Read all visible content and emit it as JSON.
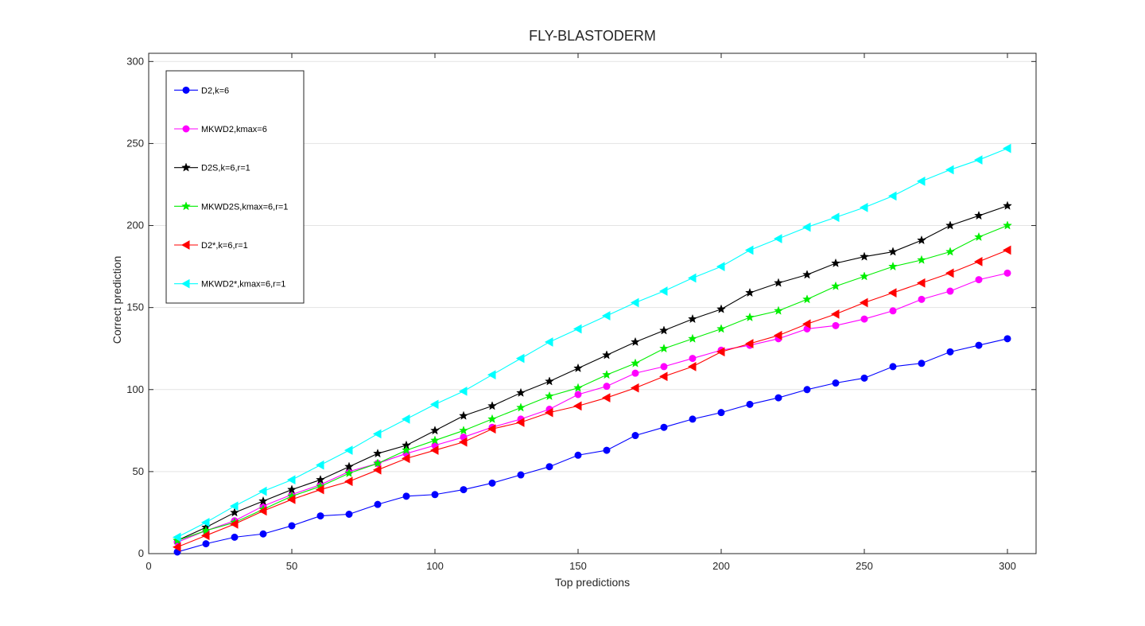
{
  "chart_data": {
    "type": "line",
    "title": "FLY-BLASTODERM",
    "xlabel": "Top predictions",
    "ylabel": "Correct prediction",
    "xlim": [
      0,
      310
    ],
    "ylim": [
      0,
      305
    ],
    "x_ticks": [
      0,
      50,
      100,
      150,
      200,
      250,
      300
    ],
    "y_ticks": [
      0,
      50,
      100,
      150,
      200,
      250,
      300
    ],
    "grid": "horizontal",
    "legend_position": "top-left",
    "x": [
      10,
      20,
      30,
      40,
      50,
      60,
      70,
      80,
      90,
      100,
      110,
      120,
      130,
      140,
      150,
      160,
      170,
      180,
      190,
      200,
      210,
      220,
      230,
      240,
      250,
      260,
      270,
      280,
      290,
      300
    ],
    "series": [
      {
        "name": "D2,k=6",
        "color": "#0000ff",
        "marker": "circle",
        "values": [
          1,
          6,
          10,
          12,
          17,
          23,
          24,
          30,
          35,
          36,
          39,
          43,
          48,
          53,
          60,
          63,
          72,
          77,
          82,
          86,
          91,
          95,
          100,
          104,
          107,
          114,
          116,
          123,
          127,
          131
        ]
      },
      {
        "name": "MKWD2,kmax=6",
        "color": "#ff00ff",
        "marker": "circle",
        "values": [
          7,
          14,
          20,
          29,
          36,
          42,
          50,
          55,
          61,
          66,
          71,
          77,
          82,
          88,
          97,
          102,
          110,
          114,
          119,
          124,
          127,
          131,
          137,
          139,
          143,
          148,
          155,
          160,
          167,
          171
        ]
      },
      {
        "name": "D2S,k=6,r=1",
        "color": "#000000",
        "marker": "star",
        "values": [
          8,
          16,
          25,
          32,
          39,
          45,
          53,
          61,
          66,
          75,
          84,
          90,
          98,
          105,
          113,
          121,
          129,
          136,
          143,
          149,
          159,
          165,
          170,
          177,
          181,
          184,
          191,
          200,
          206,
          212
        ]
      },
      {
        "name": "MKWD2S,kmax=6,r=1",
        "color": "#00ee00",
        "marker": "star",
        "values": [
          8,
          14,
          19,
          27,
          35,
          41,
          49,
          55,
          63,
          69,
          75,
          82,
          89,
          96,
          101,
          109,
          116,
          125,
          131,
          137,
          144,
          148,
          155,
          163,
          169,
          175,
          179,
          184,
          193,
          200
        ]
      },
      {
        "name": "D2*,k=6,r=1",
        "color": "#ff0000",
        "marker": "triangle-left",
        "values": [
          4,
          11,
          18,
          26,
          33,
          39,
          44,
          51,
          58,
          63,
          68,
          76,
          80,
          86,
          90,
          95,
          101,
          108,
          114,
          123,
          128,
          133,
          140,
          146,
          153,
          159,
          165,
          171,
          178,
          185
        ]
      },
      {
        "name": "MKWD2*,kmax=6,r=1",
        "color": "#00ffff",
        "marker": "triangle-left",
        "values": [
          10,
          19,
          29,
          38,
          45,
          54,
          63,
          73,
          82,
          91,
          99,
          109,
          119,
          129,
          137,
          145,
          153,
          160,
          168,
          175,
          185,
          192,
          199,
          205,
          211,
          218,
          227,
          234,
          240,
          247
        ]
      }
    ]
  }
}
